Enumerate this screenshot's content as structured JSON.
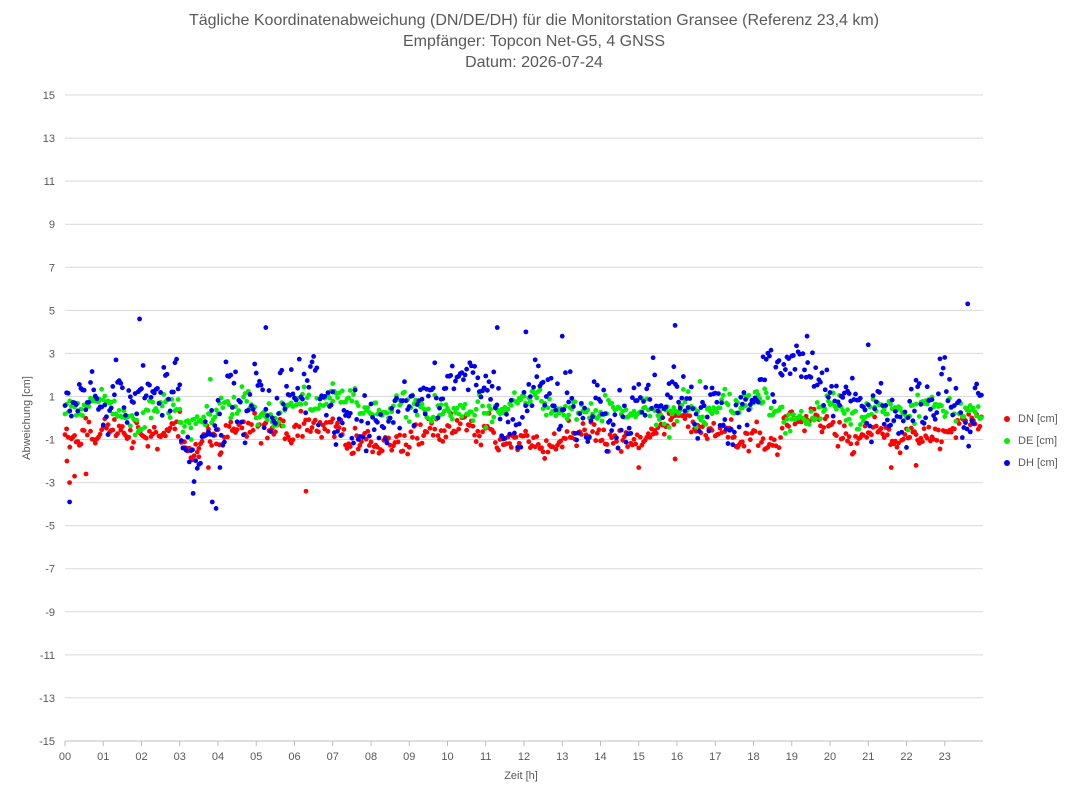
{
  "title": {
    "line1": "Tägliche Koordinatenabweichung (DN/DE/DH) für die Monitorstation Gransee (Referenz 23,4 km)",
    "line2": "Empfänger: Topcon Net-G5, 4 GNSS",
    "line3": "Datum: 2026-07-24"
  },
  "chart_data": {
    "type": "scatter",
    "xlabel": "Zeit [h]",
    "ylabel": "Abweichung [cm]",
    "xlim": [
      0,
      24
    ],
    "ylim": [
      -15,
      15
    ],
    "x_ticks": [
      "00",
      "01",
      "02",
      "03",
      "04",
      "05",
      "06",
      "07",
      "08",
      "09",
      "10",
      "11",
      "12",
      "13",
      "14",
      "15",
      "16",
      "17",
      "18",
      "19",
      "20",
      "21",
      "22",
      "23"
    ],
    "y_ticks": [
      15,
      13,
      11,
      9,
      7,
      5,
      3,
      1,
      -1,
      -3,
      -5,
      -7,
      -9,
      -11,
      -13,
      -15
    ],
    "grid": "horizontal",
    "legend_position": "right",
    "n_points_per_series": 576,
    "series": [
      {
        "name": "DN [cm]",
        "color": "#ff0000",
        "mean": -0.7,
        "spread": 0.45,
        "features": [
          {
            "x": 0.05,
            "y": -2.0
          },
          {
            "x": 0.12,
            "y": -3.0
          },
          {
            "x": 0.25,
            "y": -2.7
          },
          {
            "x": 0.55,
            "y": -2.6
          },
          {
            "x": 3.2,
            "y": -1.5
          },
          {
            "x": 3.5,
            "y": -1.8
          },
          {
            "x": 3.75,
            "y": -2.3
          },
          {
            "x": 4.05,
            "y": -1.7
          },
          {
            "x": 6.3,
            "y": -3.4
          },
          {
            "x": 15.0,
            "y": -2.3
          },
          {
            "x": 15.95,
            "y": -1.9
          },
          {
            "x": 21.6,
            "y": -2.3
          },
          {
            "x": 22.25,
            "y": -2.2
          }
        ]
      },
      {
        "name": "DE [cm]",
        "color": "#00ee00",
        "mean": 0.5,
        "spread": 0.45,
        "features": [
          {
            "x": 3.0,
            "y": -0.2
          },
          {
            "x": 3.3,
            "y": -1.0
          },
          {
            "x": 3.8,
            "y": 1.8
          },
          {
            "x": 7.0,
            "y": 1.6
          },
          {
            "x": 15.8,
            "y": -0.9
          },
          {
            "x": 16.6,
            "y": 1.7
          }
        ]
      },
      {
        "name": "DH [cm]",
        "color": "#0000ee",
        "mean": 1.0,
        "spread": 1.0,
        "features": [
          {
            "x": 0.12,
            "y": -3.9
          },
          {
            "x": 1.95,
            "y": 4.6
          },
          {
            "x": 3.35,
            "y": -3.5
          },
          {
            "x": 3.85,
            "y": -3.9
          },
          {
            "x": 3.95,
            "y": -4.2
          },
          {
            "x": 4.05,
            "y": -2.3
          },
          {
            "x": 5.25,
            "y": 4.2
          },
          {
            "x": 11.3,
            "y": 4.2
          },
          {
            "x": 12.05,
            "y": 4.0
          },
          {
            "x": 13.0,
            "y": 3.8
          },
          {
            "x": 15.95,
            "y": 4.3
          },
          {
            "x": 19.4,
            "y": 3.8
          },
          {
            "x": 21.0,
            "y": 3.4
          },
          {
            "x": 23.6,
            "y": 5.3
          }
        ]
      }
    ]
  }
}
